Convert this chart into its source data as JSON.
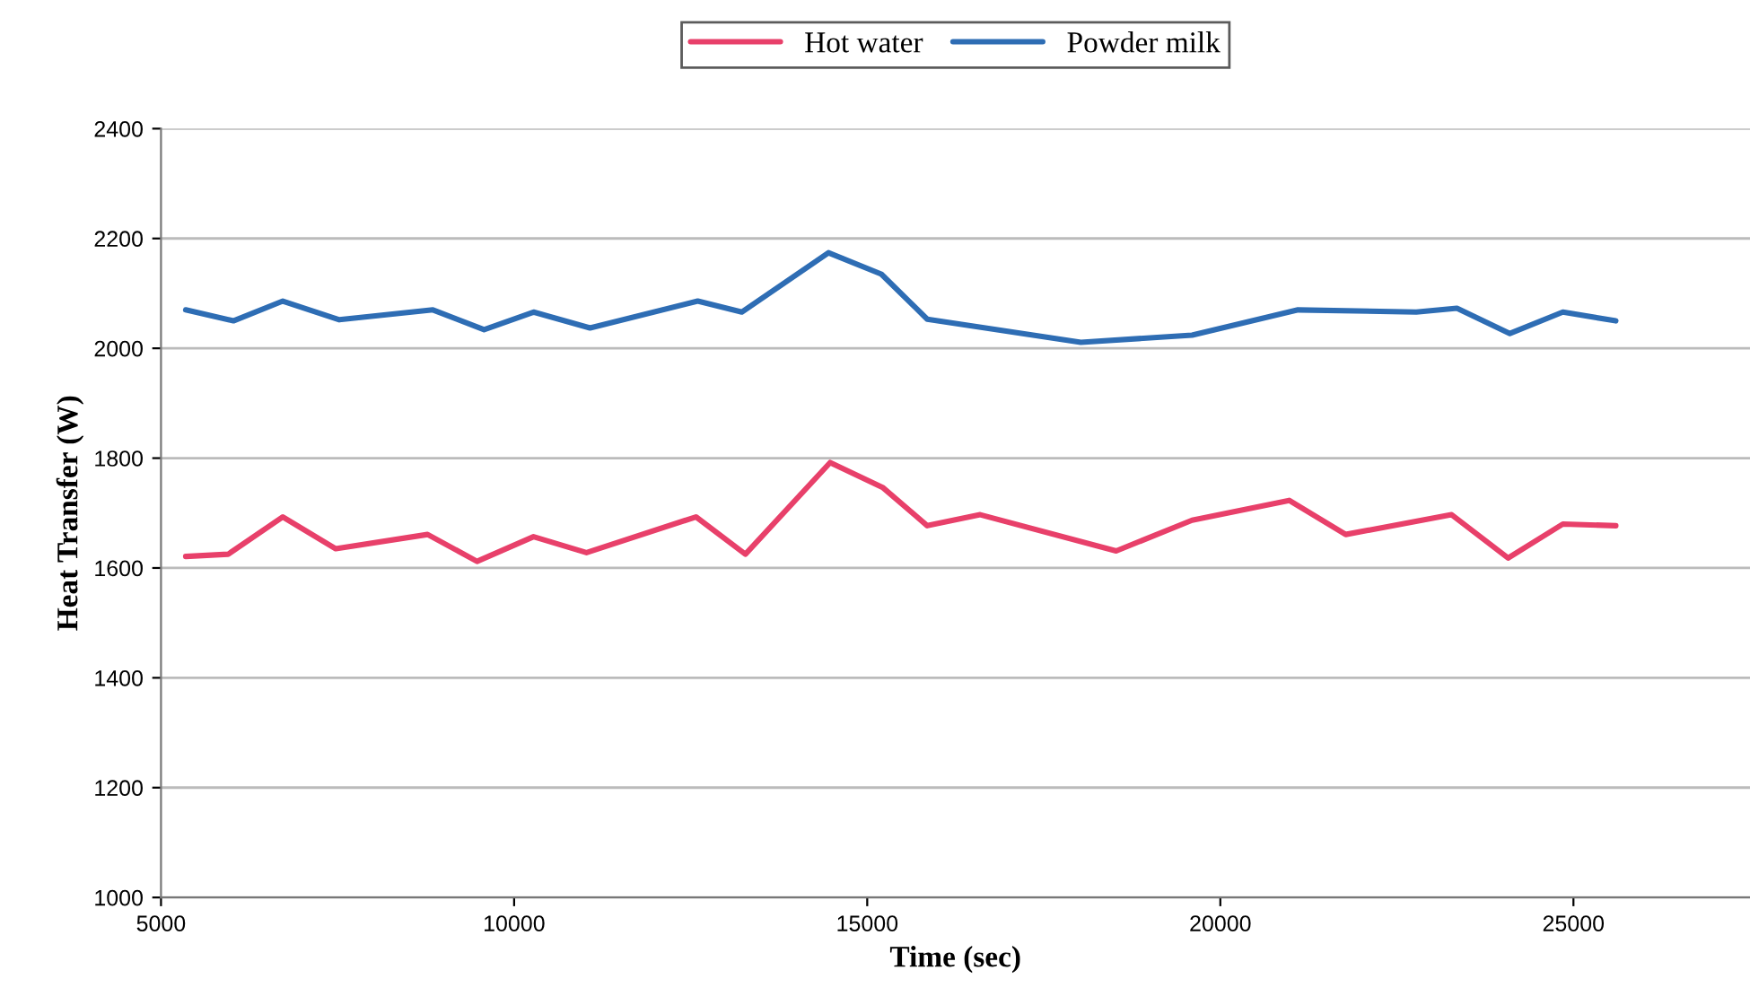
{
  "chart_data": {
    "type": "line",
    "xlabel": "Time (sec)",
    "ylabel": "Heat Transfer (W)",
    "xlim": [
      5000,
      27500
    ],
    "xticks": [
      5000,
      10000,
      15000,
      20000,
      25000
    ],
    "ylim": [
      1000,
      2400
    ],
    "yticks": [
      1000,
      1200,
      1400,
      1600,
      1800,
      2000,
      2200,
      2400
    ],
    "grid": "y",
    "legend": "top",
    "marker": "none",
    "line_style": "solid",
    "series": [
      {
        "name": "Hot water",
        "color": "#e8406a",
        "x": [
          5350,
          5950,
          6725,
          7475,
          8775,
          9475,
          10275,
          11025,
          12575,
          13275,
          14475,
          15225,
          15850,
          16600,
          18525,
          19600,
          20975,
          21775,
          23275,
          24075,
          24850,
          25600
        ],
        "values": [
          1621,
          1625,
          1693,
          1635,
          1661,
          1612,
          1657,
          1628,
          1693,
          1625,
          1792,
          1746,
          1677,
          1697,
          1631,
          1687,
          1723,
          1661,
          1697,
          1618,
          1680,
          1677
        ]
      },
      {
        "name": "Powder milk",
        "color": "#2e6db4",
        "x": [
          5350,
          6025,
          6725,
          7525,
          8850,
          9575,
          10275,
          11075,
          12600,
          13225,
          14450,
          15200,
          15850,
          18025,
          19600,
          21100,
          22775,
          23350,
          24100,
          24850,
          25600
        ],
        "values": [
          2070,
          2050,
          2086,
          2052,
          2070,
          2034,
          2066,
          2037,
          2086,
          2066,
          2174,
          2135,
          2053,
          2011,
          2024,
          2070,
          2066,
          2073,
          2027,
          2066,
          2050
        ]
      }
    ]
  }
}
